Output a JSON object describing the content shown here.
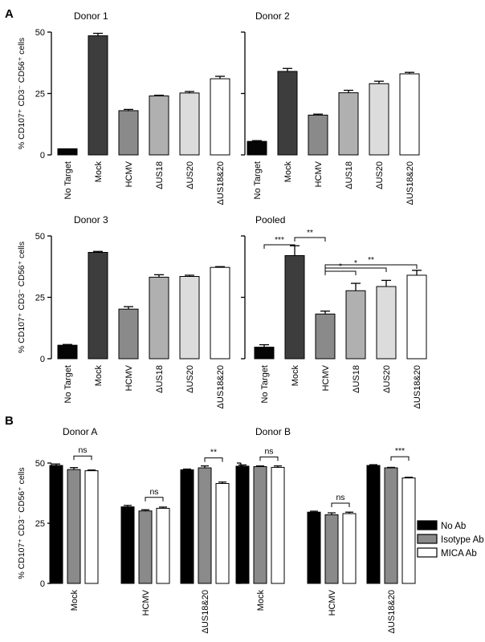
{
  "panels": {
    "a_label": "A",
    "b_label": "B"
  },
  "colors": {
    "No Target": "#050505",
    "Mock": "#3d3d3d",
    "HCMV": "#8a8a8a",
    "ΔUS18": "#b0b0b0",
    "ΔUS20": "#dcdcdc",
    "ΔUS18&20": "#ffffff",
    "No Ab": "#000000",
    "Isotype Ab": "#8a8a8a",
    "MICA Ab": "#ffffff"
  },
  "chart_data": [
    {
      "type": "bar",
      "title": "Donor 1",
      "ylabel": "% CD107⁺ CD3⁻ CD56⁺ cells",
      "ylim": [
        0,
        50
      ],
      "yticks": [
        "0",
        "25",
        "50"
      ],
      "categories": [
        "No Target",
        "Mock",
        "HCMV",
        "ΔUS18",
        "ΔUS20",
        "ΔUS18&20"
      ],
      "values": [
        2.5,
        48.5,
        18,
        24,
        25.2,
        31
      ],
      "errors": [
        0,
        1,
        0.5,
        0.3,
        0.6,
        1
      ],
      "significance": []
    },
    {
      "type": "bar",
      "title": "Donor 2",
      "ylabel": "",
      "ylim": [
        0,
        50
      ],
      "yticks": [],
      "categories": [
        "No Target",
        "Mock",
        "HCMV",
        "ΔUS18",
        "ΔUS20",
        "ΔUS18&20"
      ],
      "values": [
        5.5,
        34,
        16.2,
        25.3,
        29,
        33
      ],
      "errors": [
        0.3,
        1.2,
        0.4,
        1,
        1,
        0.6
      ],
      "significance": []
    },
    {
      "type": "bar",
      "title": "Donor 3",
      "ylabel": "% CD107⁺ CD3⁻ CD56⁺ cells",
      "ylim": [
        0,
        50
      ],
      "yticks": [
        "0",
        "25",
        "50"
      ],
      "categories": [
        "No Target",
        "Mock",
        "HCMV",
        "ΔUS18",
        "ΔUS20",
        "ΔUS18&20"
      ],
      "values": [
        5.5,
        43.3,
        20.2,
        33.2,
        33.5,
        37.2
      ],
      "errors": [
        0.3,
        0.4,
        1,
        1,
        0.5,
        0.3
      ],
      "significance": []
    },
    {
      "type": "bar",
      "title": "Pooled",
      "ylabel": "",
      "ylim": [
        0,
        50
      ],
      "yticks": [],
      "categories": [
        "No Target",
        "Mock",
        "HCMV",
        "ΔUS18",
        "ΔUS20",
        "ΔUS18&20"
      ],
      "values": [
        4.7,
        42,
        18.2,
        27.7,
        29.4,
        34
      ],
      "errors": [
        1,
        4,
        1.2,
        3,
        2.5,
        2
      ],
      "significance": [
        {
          "from": 0,
          "to": 1,
          "label": "***"
        },
        {
          "from": 1,
          "to": 2,
          "label": "**"
        },
        {
          "from": 2,
          "to": 3,
          "label": "*"
        },
        {
          "from": 2,
          "to": 4,
          "label": "*"
        },
        {
          "from": 2,
          "to": 5,
          "label": "**"
        }
      ]
    },
    {
      "type": "bar",
      "title": "Donor A",
      "ylabel": "% CD107⁺ CD3⁻ CD56⁺ cells",
      "ylim": [
        0,
        50
      ],
      "yticks": [
        "0",
        "25",
        "50"
      ],
      "categories": [
        "Mock",
        "HCMV",
        "ΔUS18&20"
      ],
      "series": [
        {
          "name": "No Ab",
          "values": [
            49,
            31.8,
            47.2
          ],
          "errors": [
            0.6,
            0.6,
            0.3
          ]
        },
        {
          "name": "Isotype Ab",
          "values": [
            47.3,
            30.1,
            48
          ],
          "errors": [
            0.8,
            0.5,
            0.8
          ]
        },
        {
          "name": "MICA Ab",
          "values": [
            46.8,
            31.2,
            41.5
          ],
          "errors": [
            0.3,
            0.5,
            0.6
          ]
        }
      ],
      "significance": [
        {
          "group": 0,
          "from": 1,
          "to": 2,
          "label": "ns"
        },
        {
          "group": 1,
          "from": 1,
          "to": 2,
          "label": "ns"
        },
        {
          "group": 2,
          "from": 1,
          "to": 2,
          "label": "**"
        }
      ]
    },
    {
      "type": "bar",
      "title": "Donor B",
      "ylabel": "",
      "ylim": [
        0,
        50
      ],
      "yticks": [],
      "categories": [
        "Mock",
        "HCMV",
        "ΔUS18&20"
      ],
      "series": [
        {
          "name": "No Ab",
          "values": [
            48.7,
            29.6,
            49
          ],
          "errors": [
            0.5,
            0.4,
            0.3
          ]
        },
        {
          "name": "Isotype Ab",
          "values": [
            48.5,
            28.5,
            48
          ],
          "errors": [
            0.3,
            0.8,
            0.2
          ]
        },
        {
          "name": "MICA Ab",
          "values": [
            48.2,
            29,
            43.8
          ],
          "errors": [
            0.6,
            0.6,
            0.3
          ]
        }
      ],
      "significance": [
        {
          "group": 0,
          "from": 1,
          "to": 2,
          "label": "ns"
        },
        {
          "group": 1,
          "from": 1,
          "to": 2,
          "label": "ns"
        },
        {
          "group": 2,
          "from": 1,
          "to": 2,
          "label": "***"
        }
      ]
    }
  ],
  "legend": [
    "No Ab",
    "Isotype Ab",
    "MICA Ab"
  ]
}
